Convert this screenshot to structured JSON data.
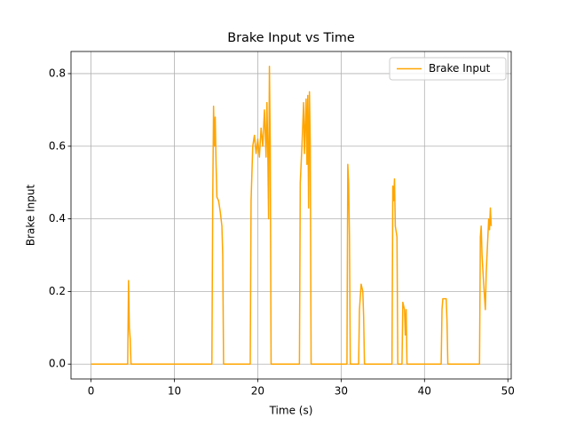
{
  "chart_data": {
    "type": "line",
    "title": "Brake Input vs Time",
    "x_label": "Time (s)",
    "y_label": "Brake Input",
    "x": [
      0,
      4.4,
      4.5,
      4.6,
      4.7,
      4.8,
      14.5,
      14.6,
      14.7,
      14.8,
      14.9,
      15.0,
      15.1,
      15.3,
      15.5,
      15.7,
      15.8,
      15.9,
      19.1,
      19.2,
      19.4,
      19.6,
      19.8,
      20.0,
      20.2,
      20.4,
      20.6,
      20.8,
      21.0,
      21.1,
      21.2,
      21.3,
      21.4,
      21.5,
      21.6,
      25.0,
      25.1,
      25.3,
      25.5,
      25.6,
      25.8,
      25.9,
      26.0,
      26.1,
      26.2,
      26.3,
      26.4,
      30.7,
      30.8,
      30.9,
      31.0,
      31.1,
      32.1,
      32.2,
      32.4,
      32.6,
      32.7,
      32.8,
      36.1,
      36.2,
      36.3,
      36.4,
      36.5,
      36.7,
      36.8,
      37.3,
      37.4,
      37.6,
      37.7,
      37.8,
      37.9,
      42.0,
      42.1,
      42.2,
      42.6,
      42.7,
      42.8,
      46.6,
      46.7,
      46.8,
      46.9,
      47.1,
      47.3,
      47.4,
      47.6,
      47.7,
      47.8,
      47.9,
      48.0
    ],
    "series": [
      {
        "name": "Brake Input",
        "color": "#ffa500",
        "values": [
          0,
          0,
          0.23,
          0.1,
          0.07,
          0,
          0,
          0.45,
          0.71,
          0.6,
          0.68,
          0.55,
          0.46,
          0.45,
          0.42,
          0.38,
          0.3,
          0,
          0,
          0.45,
          0.6,
          0.63,
          0.58,
          0.62,
          0.57,
          0.65,
          0.6,
          0.7,
          0.57,
          0.72,
          0.6,
          0.4,
          0.82,
          0.6,
          0,
          0,
          0.5,
          0.6,
          0.72,
          0.58,
          0.73,
          0.55,
          0.74,
          0.43,
          0.75,
          0.6,
          0,
          0,
          0.55,
          0.5,
          0.35,
          0,
          0,
          0.15,
          0.22,
          0.2,
          0.13,
          0,
          0,
          0.49,
          0.45,
          0.51,
          0.38,
          0.35,
          0,
          0,
          0.17,
          0.15,
          0.08,
          0.15,
          0,
          0,
          0.15,
          0.18,
          0.18,
          0.12,
          0,
          0,
          0.35,
          0.38,
          0.3,
          0.22,
          0.15,
          0.25,
          0.35,
          0.4,
          0.37,
          0.43,
          0.38
        ]
      }
    ],
    "xlim": [
      -2.4,
      50.4
    ],
    "ylim": [
      -0.041,
      0.861
    ],
    "xticks": [
      0,
      10,
      20,
      30,
      40,
      50
    ],
    "yticks": [
      {
        "value": 0,
        "label": "0.0"
      },
      0.2,
      0.4,
      0.6,
      0.8
    ],
    "grid": true,
    "legend": "upper right"
  }
}
